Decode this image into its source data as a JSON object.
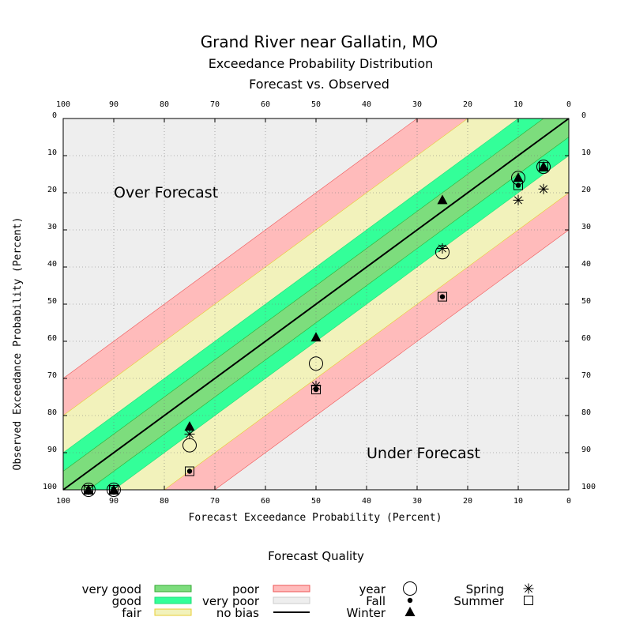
{
  "chart_data": {
    "type": "scatter",
    "title": "Grand River near Gallatin, MO",
    "subtitle_1": "Exceedance Probability Distribution",
    "subtitle_2": "Forecast vs. Observed",
    "xlabel": "Forecast Exceedance Probability (Percent)",
    "ylabel": "Observed Exceedance Probability (Percent)",
    "xlim": [
      100,
      0
    ],
    "ylim": [
      100,
      0
    ],
    "x_ticks": [
      "100",
      "90",
      "80",
      "70",
      "60",
      "50",
      "40",
      "30",
      "20",
      "10",
      "0"
    ],
    "y_ticks": [
      "0",
      "10",
      "20",
      "30",
      "40",
      "50",
      "60",
      "70",
      "80",
      "90",
      "100"
    ],
    "grid": true,
    "region_labels": {
      "over": "Over Forecast",
      "under": "Under Forecast"
    },
    "bands": [
      {
        "name": "very good",
        "half_width": 5,
        "color": "#7ddd7d"
      },
      {
        "name": "good",
        "half_width": 10,
        "color": "#33ff99"
      },
      {
        "name": "fair",
        "half_width": 20,
        "color": "#f2f2bb"
      },
      {
        "name": "poor",
        "half_width": 30,
        "color": "#ffbbbb"
      },
      {
        "name": "very poor",
        "color": "#eeeeee"
      }
    ],
    "series": [
      {
        "name": "year",
        "marker": "circle",
        "points": [
          [
            95,
            100
          ],
          [
            90,
            100
          ],
          [
            75,
            88
          ],
          [
            50,
            66
          ],
          [
            25,
            36
          ],
          [
            10,
            16
          ],
          [
            5,
            13
          ]
        ]
      },
      {
        "name": "Fall",
        "marker": "dot",
        "points": [
          [
            95,
            100
          ],
          [
            90,
            100
          ],
          [
            75,
            95
          ],
          [
            50,
            73
          ],
          [
            25,
            48
          ],
          [
            10,
            18
          ],
          [
            5,
            13
          ]
        ]
      },
      {
        "name": "Winter",
        "marker": "triangle",
        "points": [
          [
            95,
            100
          ],
          [
            90,
            100
          ],
          [
            75,
            83
          ],
          [
            50,
            59
          ],
          [
            25,
            22
          ],
          [
            10,
            16
          ],
          [
            5,
            13
          ]
        ]
      },
      {
        "name": "Spring",
        "marker": "star",
        "points": [
          [
            95,
            100
          ],
          [
            90,
            100
          ],
          [
            75,
            85
          ],
          [
            50,
            72
          ],
          [
            25,
            35
          ],
          [
            10,
            22
          ],
          [
            5,
            19
          ]
        ]
      },
      {
        "name": "Summer",
        "marker": "square",
        "points": [
          [
            95,
            100
          ],
          [
            90,
            100
          ],
          [
            75,
            95
          ],
          [
            50,
            73
          ],
          [
            25,
            48
          ],
          [
            10,
            18
          ],
          [
            5,
            13
          ]
        ]
      }
    ]
  },
  "legend": {
    "title": "Forecast Quality",
    "entries": [
      {
        "label": "very good",
        "kind": "box",
        "color": "#7ddd7d",
        "edge": "#33aa33"
      },
      {
        "label": "good",
        "kind": "box",
        "color": "#33ff99",
        "edge": "#22dd77"
      },
      {
        "label": "fair",
        "kind": "box",
        "color": "#f2f2bb",
        "edge": "#e8cc33"
      },
      {
        "label": "poor",
        "kind": "box",
        "color": "#ffbbbb",
        "edge": "#ee5555"
      },
      {
        "label": "very poor",
        "kind": "box",
        "color": "#eeeeee",
        "edge": "#cccccc"
      },
      {
        "label": "no bias",
        "kind": "line",
        "color": "#000000"
      },
      {
        "label": "year",
        "kind": "marker",
        "marker": "circle"
      },
      {
        "label": "Fall",
        "kind": "marker",
        "marker": "dot"
      },
      {
        "label": "Winter",
        "kind": "marker",
        "marker": "triangle"
      },
      {
        "label": "Spring",
        "kind": "marker",
        "marker": "star"
      },
      {
        "label": "Summer",
        "kind": "marker",
        "marker": "square"
      }
    ]
  }
}
